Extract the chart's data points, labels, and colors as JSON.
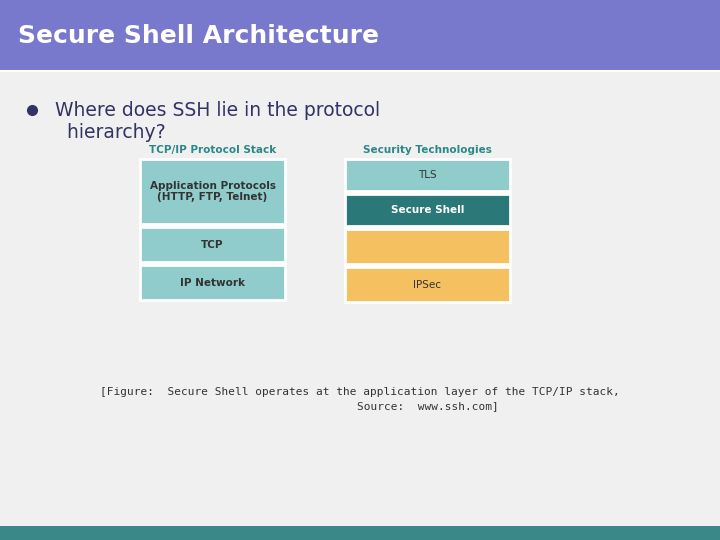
{
  "title": "Secure Shell Architecture",
  "title_bg": "#7878cc",
  "title_color": "#ffffff",
  "title_fontsize": 18,
  "bullet_text_line1": "Where does SSH lie in the protocol",
  "bullet_text_line2": "  hierarchy?",
  "bullet_color": "#333366",
  "bg_color": "#f0f0f0",
  "col1_header": "TCP/IP Protocol Stack",
  "col2_header": "Security Technologies",
  "header_color": "#2a8888",
  "col1_boxes": [
    {
      "label": "Application Protocols\n(HTTP, FTP, Telnet)",
      "color": "#90cccc",
      "text_color": "#333333",
      "bold": true
    },
    {
      "label": "TCP",
      "color": "#90cccc",
      "text_color": "#333333",
      "bold": true
    },
    {
      "label": "IP Network",
      "color": "#90cccc",
      "text_color": "#333333",
      "bold": true
    }
  ],
  "col2_boxes": [
    {
      "label": "TLS",
      "color": "#90cccc",
      "text_color": "#333333",
      "bold": false
    },
    {
      "label": "Secure Shell",
      "color": "#2a7878",
      "text_color": "#ffffff",
      "bold": true
    },
    {
      "label": "",
      "color": "#f5c060",
      "text_color": "#333333",
      "bold": false
    },
    {
      "label": "IPSec",
      "color": "#f5c060",
      "text_color": "#333333",
      "bold": false
    }
  ],
  "caption_line1": "[Figure:  Secure Shell operates at the application layer of the TCP/IP stack,",
  "caption_line2": "                    Source:  www.ssh.com]",
  "caption_color": "#333333",
  "footer_color": "#3a8888"
}
